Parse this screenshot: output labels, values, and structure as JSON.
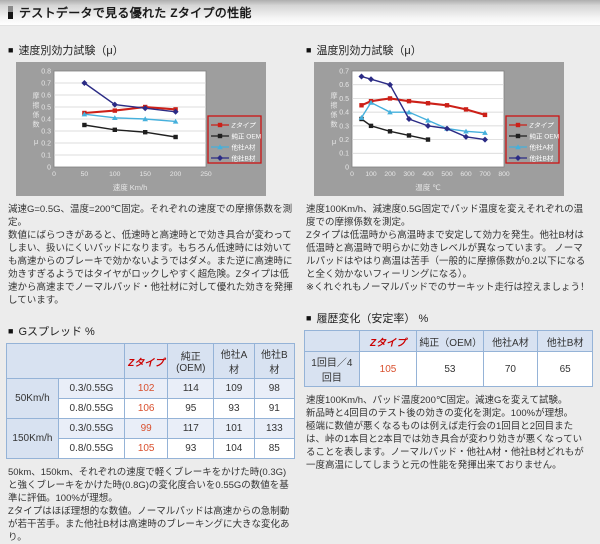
{
  "header": {
    "title": "テストデータで見る優れた Zタイプの性能"
  },
  "bullet": "■",
  "colors": {
    "z_red": "#cc2018",
    "oem_black": "#1f1f1f",
    "companyA_cyan": "#45b0dc",
    "companyB_navy": "#2b2b85",
    "z_value_red": "#d9502e",
    "table_border": "#95b3d7",
    "table_header_bg": "#d8e2f1",
    "panel_gray": "#9e9e9e",
    "legend_border_red": "#cc1414"
  },
  "left": {
    "section_title": "速度別効力試験（μ）",
    "desc": [
      "減速G=0.5G、温度=200℃固定。それぞれの速度での摩擦係数を測定。",
      "数値にばらつきがあると、低速時と高速時とで効き具合が変わってしまい、扱いにくいパッドになります。もちろん低速時には効いても高速からのブレーキで効かないようではダメ。また逆に高速時に効きすぎるようではタイヤがロックしやすく超危険。Zタイプは低速から高速までノーマルパッド・他社材に対して優れた効きを発揮しています。"
    ],
    "note": [
      "50km、150km、それぞれの速度で軽くブレーキをかけた時(0.3G)と強くブレーキをかけた時(0.8G)の変化度合いを0.55Gの数値を基準に評価。100%が理想。",
      "Zタイプはほぼ理想的な数値。ノーマルパッドは高速からの急制動が若干苦手。また他社B材は高速時のブレーキングに大きな変化あり。"
    ]
  },
  "right": {
    "section_title": "温度別効力試験（μ）",
    "desc": [
      "速度100Km/h、減速度0.5G固定でパッド温度を変えそれぞれの温度での摩擦係数を測定。",
      "Zタイプは低温時から高温時まで安定して効力を発生。他社B材は低温時と高温時で明らかに効きレベルが異なっています。 ノーマルパッドはやはり高温は苦手（一般的に摩擦係数が0.2以下になると全く効かないフィーリングになる）。",
      "※くれぐれもノーマルパッドでのサーキット走行は控えましょう！"
    ],
    "note": [
      "速度100Km/h、パッド温度200℃固定。減速Gを変えて試験。",
      "新品時と4回目のテスト後の効きの変化を測定。100%が理想。",
      "極端に数値が悪くなるものは例えば走行会の1回目と2回目または、峠の1本目と2本目では効き具合が変わり効きが悪くなっていることを表します。ノーマルパッド・他社A材・他社B材どれもが一度高温にしてしまうと元の性能を発揮出来ておりません。"
    ]
  },
  "chart_data": [
    {
      "type": "line",
      "title": "速度別効力試験（μ）",
      "xlabel": "速度 Km/h",
      "ylabel": "摩擦係数 μ",
      "xlim": [
        0,
        250
      ],
      "ylim": [
        0,
        0.8
      ],
      "xticks": [
        0,
        50,
        100,
        150,
        200,
        250
      ],
      "yticks": [
        0,
        0.1,
        0.2,
        0.3,
        0.4,
        0.5,
        0.6,
        0.7,
        0.8
      ],
      "grid": "horizontal",
      "legend_position": "right",
      "series": [
        {
          "name": "Zタイプ",
          "color": "#cc2018",
          "marker": "square",
          "x": [
            50,
            100,
            150,
            200
          ],
          "y": [
            0.45,
            0.47,
            0.5,
            0.48
          ]
        },
        {
          "name": "純正 OEM",
          "color": "#1f1f1f",
          "marker": "square",
          "x": [
            50,
            100,
            150,
            200
          ],
          "y": [
            0.35,
            0.31,
            0.29,
            0.25
          ]
        },
        {
          "name": "他社A材",
          "color": "#45b0dc",
          "marker": "triangle",
          "x": [
            50,
            100,
            150,
            200
          ],
          "y": [
            0.44,
            0.41,
            0.4,
            0.38
          ]
        },
        {
          "name": "他社B材",
          "color": "#2b2b85",
          "marker": "diamond",
          "x": [
            50,
            100,
            150,
            200
          ],
          "y": [
            0.7,
            0.52,
            0.49,
            0.46
          ]
        }
      ]
    },
    {
      "type": "line",
      "title": "温度別効力試験（μ）",
      "xlabel": "温度 ℃",
      "ylabel": "摩擦係数 μ",
      "xlim": [
        0,
        800
      ],
      "ylim": [
        0,
        0.7
      ],
      "xticks": [
        0,
        100,
        200,
        300,
        400,
        500,
        600,
        700,
        800
      ],
      "yticks": [
        0,
        0.1,
        0.2,
        0.3,
        0.4,
        0.5,
        0.6,
        0.7
      ],
      "grid": "horizontal",
      "legend_position": "right",
      "series": [
        {
          "name": "Zタイプ",
          "color": "#cc2018",
          "marker": "square",
          "x": [
            50,
            100,
            200,
            300,
            400,
            500,
            600,
            700
          ],
          "y": [
            0.45,
            0.48,
            0.5,
            0.48,
            0.465,
            0.45,
            0.42,
            0.38
          ]
        },
        {
          "name": "純正 OEM",
          "color": "#1f1f1f",
          "marker": "square",
          "x": [
            50,
            100,
            200,
            300,
            400
          ],
          "y": [
            0.35,
            0.3,
            0.26,
            0.23,
            0.2
          ]
        },
        {
          "name": "他社A材",
          "color": "#45b0dc",
          "marker": "triangle",
          "x": [
            50,
            100,
            200,
            300,
            400,
            500,
            600,
            700
          ],
          "y": [
            0.36,
            0.47,
            0.4,
            0.4,
            0.34,
            0.28,
            0.26,
            0.25
          ]
        },
        {
          "name": "他社B材",
          "color": "#2b2b85",
          "marker": "diamond",
          "x": [
            50,
            100,
            200,
            300,
            400,
            500,
            600,
            700
          ],
          "y": [
            0.66,
            0.64,
            0.6,
            0.35,
            0.3,
            0.28,
            0.22,
            0.2
          ]
        }
      ]
    }
  ],
  "tables": {
    "g_spread": {
      "title": "Gスプレッド %",
      "columns": [
        "Zタイプ",
        "純正 (OEM)",
        "他社A材",
        "他社B材"
      ],
      "groups": [
        {
          "label": "50Km/h",
          "rows": [
            {
              "label": "0.3/0.55G",
              "values": [
                "102",
                "114",
                "109",
                "98"
              ]
            },
            {
              "label": "0.8/0.55G",
              "values": [
                "106",
                "95",
                "93",
                "91"
              ]
            }
          ]
        },
        {
          "label": "150Km/h",
          "rows": [
            {
              "label": "0.3/0.55G",
              "values": [
                "99",
                "117",
                "101",
                "133"
              ]
            },
            {
              "label": "0.8/0.55G",
              "values": [
                "105",
                "93",
                "104",
                "85"
              ]
            }
          ]
        }
      ]
    },
    "history": {
      "title": "履歴変化（安定率） %",
      "columns": [
        "Zタイプ",
        "純正（OEM）",
        "他社A材",
        "他社B材"
      ],
      "rows": [
        {
          "label": "1回目／4回目",
          "values": [
            "105",
            "53",
            "70",
            "65"
          ]
        }
      ]
    }
  }
}
